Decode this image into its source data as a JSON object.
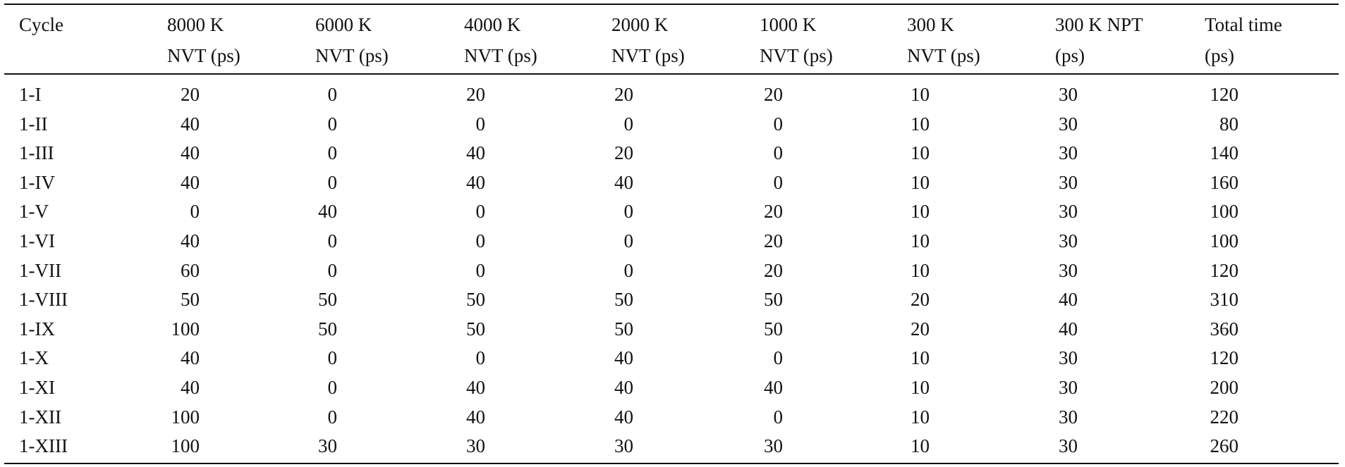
{
  "table": {
    "header": [
      [
        "Cycle"
      ],
      [
        "8000 K",
        "NVT (ps)"
      ],
      [
        "6000 K",
        "NVT (ps)"
      ],
      [
        "4000 K",
        "NVT (ps)"
      ],
      [
        "2000 K",
        "NVT (ps)"
      ],
      [
        "1000 K",
        "NVT (ps)"
      ],
      [
        "300 K",
        "NVT (ps)"
      ],
      [
        "300 K NPT",
        "(ps)"
      ],
      [
        "Total time",
        "(ps)"
      ]
    ],
    "rows": [
      [
        "1-I",
        20,
        0,
        20,
        20,
        20,
        10,
        30,
        120
      ],
      [
        "1-II",
        40,
        0,
        0,
        0,
        0,
        10,
        30,
        80
      ],
      [
        "1-III",
        40,
        0,
        40,
        20,
        0,
        10,
        30,
        140
      ],
      [
        "1-IV",
        40,
        0,
        40,
        40,
        0,
        10,
        30,
        160
      ],
      [
        "1-V",
        0,
        40,
        0,
        0,
        20,
        10,
        30,
        100
      ],
      [
        "1-VI",
        40,
        0,
        0,
        0,
        20,
        10,
        30,
        100
      ],
      [
        "1-VII",
        60,
        0,
        0,
        0,
        20,
        10,
        30,
        120
      ],
      [
        "1-VIII",
        50,
        50,
        50,
        50,
        50,
        20,
        40,
        310
      ],
      [
        "1-IX",
        100,
        50,
        50,
        50,
        50,
        20,
        40,
        360
      ],
      [
        "1-X",
        40,
        0,
        0,
        40,
        0,
        10,
        30,
        120
      ],
      [
        "1-XI",
        40,
        0,
        40,
        40,
        40,
        10,
        30,
        200
      ],
      [
        "1-XII",
        100,
        0,
        40,
        40,
        0,
        10,
        30,
        220
      ],
      [
        "1-XIII",
        100,
        30,
        30,
        30,
        30,
        10,
        30,
        260
      ]
    ]
  }
}
